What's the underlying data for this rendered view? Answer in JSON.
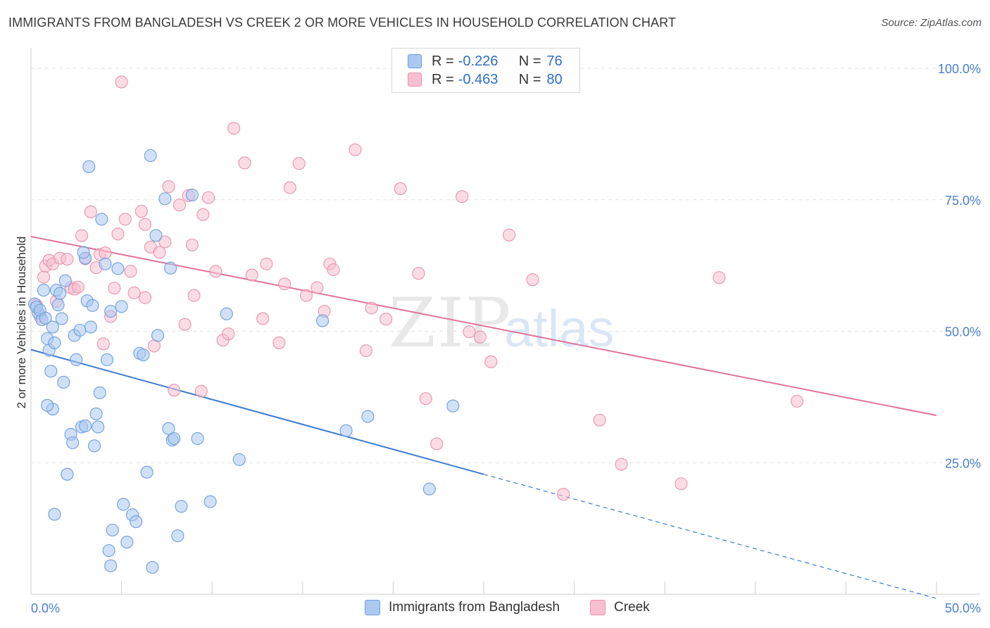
{
  "title": "IMMIGRANTS FROM BANGLADESH VS CREEK 2 OR MORE VEHICLES IN HOUSEHOLD CORRELATION CHART",
  "source": "Source: ZipAtlas.com",
  "watermark": {
    "zip": "ZIP",
    "atlas": "atlas"
  },
  "legend": [
    {
      "r_label": "R = ",
      "r_value": "-0.226",
      "n_label": "N = ",
      "n_value": "76",
      "fill": "#aac8f0",
      "stroke": "#6f9ede"
    },
    {
      "r_label": "R = ",
      "r_value": "-0.463",
      "n_label": "N = ",
      "n_value": "80",
      "fill": "#f7bfd0",
      "stroke": "#e893ae"
    }
  ],
  "bottom_legend": [
    "Immigrants from Bangladesh",
    "Creek"
  ],
  "chart_data": {
    "type": "scatter",
    "title": "IMMIGRANTS FROM BANGLADESH VS CREEK 2 OR MORE VEHICLES IN HOUSEHOLD CORRELATION CHART",
    "xlabel": "",
    "ylabel": "2 or more Vehicles in Household",
    "xlim": [
      0,
      50
    ],
    "ylim": [
      0,
      100
    ],
    "x_tick_labels": [
      "0.0%",
      "50.0%"
    ],
    "y_tick_labels": [
      "25.0%",
      "50.0%",
      "75.0%",
      "100.0%"
    ],
    "y_ticks": [
      25,
      50,
      75,
      100
    ],
    "grid": true,
    "legend_placement": "top-center",
    "colors": {
      "blue": "#3b7bd1",
      "pink": "#e0739a",
      "axis_text": "#4a7fd0"
    },
    "series": [
      {
        "name": "Immigrants from Bangladesh",
        "color": "#6f9ede",
        "fill": "#aac8f0",
        "trend": {
          "x": [
            0,
            25
          ],
          "y": [
            46.5,
            22.8
          ]
        },
        "trend_dashed": {
          "x": [
            25,
            50
          ],
          "y": [
            22.8,
            -0.8
          ]
        },
        "points": [
          [
            0.2,
            55.2
          ],
          [
            0.4,
            53.5
          ],
          [
            0.6,
            52.2
          ],
          [
            0.3,
            54.6
          ],
          [
            0.5,
            54.0
          ],
          [
            0.7,
            57.8
          ],
          [
            0.8,
            52.5
          ],
          [
            0.9,
            48.6
          ],
          [
            1.0,
            46.4
          ],
          [
            1.1,
            42.4
          ],
          [
            1.2,
            50.8
          ],
          [
            1.3,
            47.8
          ],
          [
            1.4,
            57.8
          ],
          [
            1.5,
            55.0
          ],
          [
            1.6,
            57.2
          ],
          [
            1.7,
            52.4
          ],
          [
            1.8,
            40.3
          ],
          [
            1.9,
            59.6
          ],
          [
            2.0,
            22.8
          ],
          [
            2.2,
            30.4
          ],
          [
            2.3,
            28.8
          ],
          [
            2.5,
            44.6
          ],
          [
            2.4,
            49.2
          ],
          [
            2.7,
            50.2
          ],
          [
            2.8,
            31.8
          ],
          [
            3.0,
            63.9
          ],
          [
            3.1,
            55.8
          ],
          [
            3.3,
            50.8
          ],
          [
            3.4,
            54.9
          ],
          [
            3.5,
            28.2
          ],
          [
            3.6,
            34.3
          ],
          [
            3.8,
            38.3
          ],
          [
            3.9,
            71.3
          ],
          [
            4.1,
            62.8
          ],
          [
            4.2,
            44.6
          ],
          [
            4.4,
            53.8
          ],
          [
            4.5,
            12.2
          ],
          [
            4.8,
            61.9
          ],
          [
            5.0,
            54.7
          ],
          [
            5.1,
            17.1
          ],
          [
            5.3,
            9.9
          ],
          [
            5.6,
            15.1
          ],
          [
            5.8,
            13.8
          ],
          [
            6.0,
            45.8
          ],
          [
            6.2,
            45.5
          ],
          [
            6.4,
            23.2
          ],
          [
            6.6,
            83.4
          ],
          [
            6.7,
            5.1
          ],
          [
            6.9,
            68.2
          ],
          [
            7.0,
            49.2
          ],
          [
            7.4,
            75.2
          ],
          [
            7.6,
            31.5
          ],
          [
            7.7,
            62.0
          ],
          [
            7.8,
            29.3
          ],
          [
            7.9,
            29.6
          ],
          [
            8.1,
            11.1
          ],
          [
            8.3,
            16.7
          ],
          [
            8.9,
            75.9
          ],
          [
            9.2,
            29.6
          ],
          [
            9.9,
            17.6
          ],
          [
            10.8,
            53.3
          ],
          [
            11.5,
            25.6
          ],
          [
            16.1,
            52.0
          ],
          [
            17.4,
            31.1
          ],
          [
            18.6,
            33.8
          ],
          [
            22.0,
            20.0
          ],
          [
            23.3,
            35.8
          ],
          [
            2.9,
            65.0
          ],
          [
            3.2,
            81.3
          ],
          [
            3.0,
            32.0
          ],
          [
            1.2,
            35.2
          ],
          [
            4.3,
            8.3
          ],
          [
            4.4,
            5.4
          ],
          [
            0.9,
            35.9
          ],
          [
            1.3,
            15.2
          ],
          [
            3.7,
            31.8
          ]
        ]
      },
      {
        "name": "Creek",
        "color": "#e893ae",
        "fill": "#f7bfd0",
        "trend": {
          "x": [
            0,
            50
          ],
          "y": [
            68.0,
            34.0
          ]
        },
        "points": [
          [
            0.3,
            55.0
          ],
          [
            0.5,
            52.8
          ],
          [
            0.7,
            60.3
          ],
          [
            0.8,
            62.4
          ],
          [
            1.0,
            63.5
          ],
          [
            1.2,
            62.8
          ],
          [
            1.4,
            55.7
          ],
          [
            1.6,
            63.9
          ],
          [
            2.0,
            63.7
          ],
          [
            2.2,
            58.3
          ],
          [
            2.4,
            58.0
          ],
          [
            2.6,
            58.4
          ],
          [
            2.8,
            68.2
          ],
          [
            3.0,
            63.8
          ],
          [
            3.3,
            72.7
          ],
          [
            3.6,
            62.1
          ],
          [
            3.8,
            64.6
          ],
          [
            4.0,
            47.6
          ],
          [
            4.1,
            64.9
          ],
          [
            4.4,
            52.8
          ],
          [
            4.6,
            58.2
          ],
          [
            4.8,
            68.5
          ],
          [
            5.0,
            97.4
          ],
          [
            5.2,
            71.3
          ],
          [
            5.5,
            61.4
          ],
          [
            5.7,
            57.3
          ],
          [
            6.1,
            72.8
          ],
          [
            6.3,
            70.3
          ],
          [
            6.6,
            66.0
          ],
          [
            6.8,
            47.2
          ],
          [
            7.1,
            65.0
          ],
          [
            7.4,
            67.0
          ],
          [
            7.6,
            77.5
          ],
          [
            7.9,
            38.8
          ],
          [
            8.2,
            74.0
          ],
          [
            8.5,
            51.3
          ],
          [
            8.7,
            75.8
          ],
          [
            8.9,
            66.4
          ],
          [
            9.0,
            56.8
          ],
          [
            9.5,
            72.2
          ],
          [
            9.8,
            75.4
          ],
          [
            10.2,
            61.4
          ],
          [
            10.6,
            48.3
          ],
          [
            10.9,
            49.5
          ],
          [
            11.2,
            88.6
          ],
          [
            11.8,
            82.0
          ],
          [
            12.2,
            60.7
          ],
          [
            12.8,
            52.4
          ],
          [
            13.0,
            62.8
          ],
          [
            13.7,
            47.8
          ],
          [
            14.0,
            59.0
          ],
          [
            14.3,
            77.3
          ],
          [
            14.8,
            81.9
          ],
          [
            15.2,
            56.8
          ],
          [
            15.8,
            58.3
          ],
          [
            16.2,
            53.8
          ],
          [
            16.5,
            62.8
          ],
          [
            16.7,
            61.7
          ],
          [
            17.9,
            84.5
          ],
          [
            18.5,
            46.3
          ],
          [
            18.8,
            54.4
          ],
          [
            19.6,
            52.3
          ],
          [
            20.4,
            77.1
          ],
          [
            21.4,
            61.0
          ],
          [
            21.8,
            37.2
          ],
          [
            22.4,
            28.6
          ],
          [
            23.8,
            75.6
          ],
          [
            24.2,
            49.9
          ],
          [
            24.8,
            48.9
          ],
          [
            25.4,
            44.2
          ],
          [
            26.4,
            68.3
          ],
          [
            27.7,
            59.8
          ],
          [
            29.4,
            19.0
          ],
          [
            31.4,
            33.1
          ],
          [
            32.6,
            24.7
          ],
          [
            35.9,
            21.0
          ],
          [
            38.0,
            60.2
          ],
          [
            42.3,
            36.7
          ],
          [
            9.4,
            38.6
          ],
          [
            6.3,
            56.4
          ]
        ]
      }
    ]
  }
}
